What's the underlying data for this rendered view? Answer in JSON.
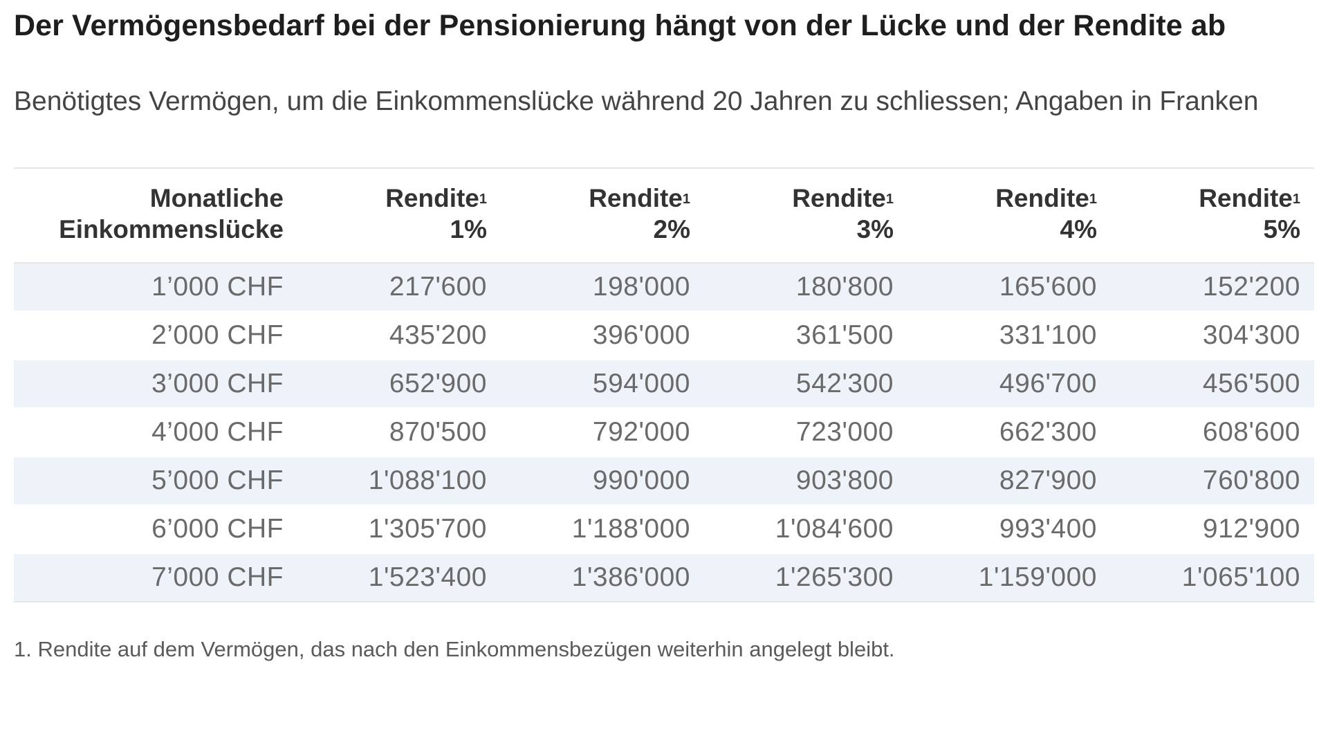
{
  "header": {
    "title": "Der Vermögensbedarf bei der Pensionierung hängt von der Lücke und der Rendite ab",
    "subtitle": "Benötigtes Vermögen, um die Einkommenslücke während 20 Jahren zu schliessen; Angaben in Franken"
  },
  "table": {
    "columns": [
      {
        "label": "Monatliche Einkommenslücke",
        "sup": ""
      },
      {
        "label": "Rendite",
        "sup": "1",
        "rate": "1%"
      },
      {
        "label": "Rendite",
        "sup": "1",
        "rate": "2%"
      },
      {
        "label": "Rendite",
        "sup": "1",
        "rate": "3%"
      },
      {
        "label": "Rendite",
        "sup": "1",
        "rate": "4%"
      },
      {
        "label": "Rendite",
        "sup": "1",
        "rate": "5%"
      }
    ],
    "rows": [
      [
        "1’000 CHF",
        "217'600",
        "198'000",
        "180'800",
        "165'600",
        "152'200"
      ],
      [
        "2’000 CHF",
        "435'200",
        "396'000",
        "361'500",
        "331'100",
        "304'300"
      ],
      [
        "3’000 CHF",
        "652'900",
        "594'000",
        "542'300",
        "496'700",
        "456'500"
      ],
      [
        "4’000 CHF",
        "870'500",
        "792'000",
        "723'000",
        "662'300",
        "608'600"
      ],
      [
        "5’000 CHF",
        "1'088'100",
        "990'000",
        "903'800",
        "827'900",
        "760'800"
      ],
      [
        "6’000 CHF",
        "1'305'700",
        "1'188'000",
        "1'084'600",
        "993'400",
        "912'900"
      ],
      [
        "7’000 CHF",
        "1'523'400",
        "1'386'000",
        "1'265'300",
        "1'159'000",
        "1'065'100"
      ]
    ]
  },
  "footnote": "1. Rendite auf dem Vermögen, das nach den Einkommensbezügen weiterhin angelegt bleibt."
}
